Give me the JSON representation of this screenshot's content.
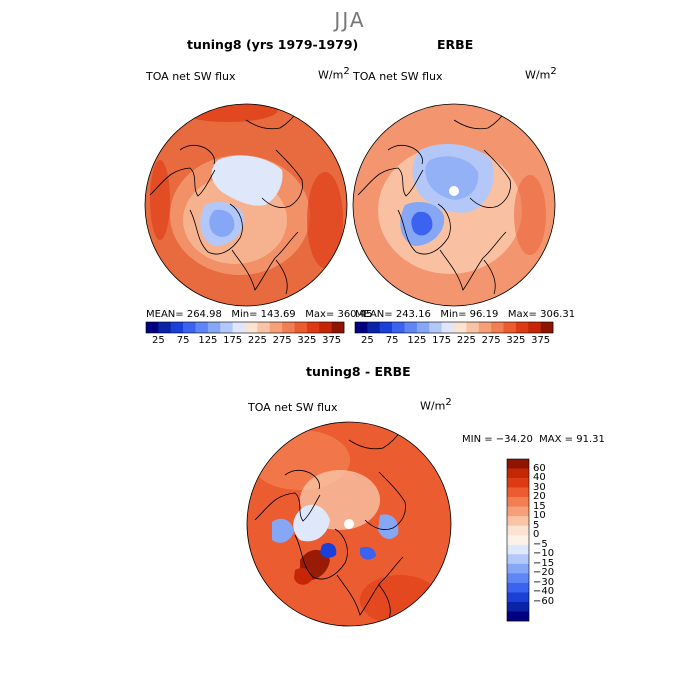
{
  "figure": {
    "season": "JJA",
    "colors": {
      "neg": [
        "#000080",
        "#0a24a8",
        "#1b40d8",
        "#3b63f0",
        "#5f86f4",
        "#86a7f6",
        "#b3c8f8",
        "#dfe8fb"
      ],
      "pos": [
        "#fbe2d2",
        "#f9c4a6",
        "#f6a079",
        "#f27e53",
        "#ec5c31",
        "#de3b14",
        "#c42606",
        "#8f1402"
      ],
      "neutral": "#fdf2e8",
      "land": "#ffffff",
      "line": "#000000"
    }
  },
  "panel_left": {
    "title": "tuning8 (yrs 1979-1979)",
    "variable": "TOA net SW flux",
    "units": "W/m",
    "units_exp": "2",
    "stats_mean": "MEAN= 264.98",
    "stats_min": "Min= 143.69",
    "stats_max": "Max= 360.45",
    "colorbar_labels": [
      "25",
      "75",
      "125",
      "175",
      "225",
      "275",
      "325",
      "375"
    ]
  },
  "panel_right": {
    "title": "ERBE",
    "variable": "TOA net SW flux",
    "units": "W/m",
    "units_exp": "2",
    "stats_mean": "MEAN= 243.16",
    "stats_min": "Min= 96.19",
    "stats_max": "Max= 306.31",
    "colorbar_labels": [
      "25",
      "75",
      "125",
      "175",
      "225",
      "275",
      "325",
      "375"
    ]
  },
  "panel_diff": {
    "title": "tuning8 - ERBE",
    "variable": "TOA net SW flux",
    "units": "W/m",
    "units_exp": "2",
    "stats_min": "MIN = −34.20",
    "stats_max": "MAX =   91.31",
    "colorbar_labels": [
      "60",
      "40",
      "30",
      "20",
      "15",
      "10",
      "5",
      "0",
      "−5",
      "−10",
      "−15",
      "−20",
      "−30",
      "−40",
      "−60"
    ]
  }
}
